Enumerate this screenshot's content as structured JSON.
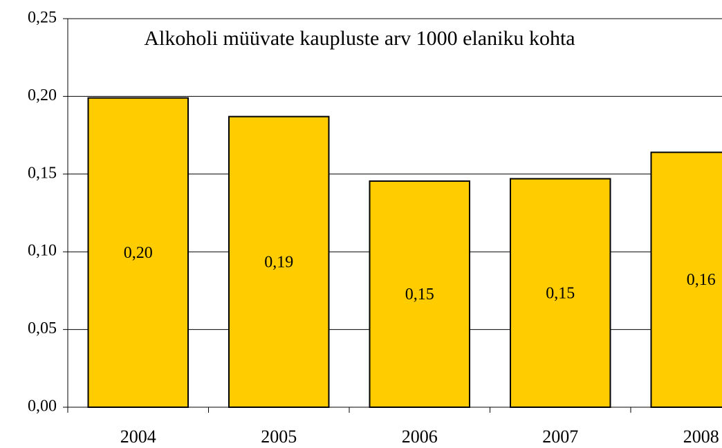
{
  "chart_data": {
    "type": "bar",
    "title": "Alkoholi müüvate kaupluste arv 1000 elaniku kohta",
    "categories": [
      "2004",
      "2005",
      "2006",
      "2007",
      "2008"
    ],
    "values": [
      0.199,
      0.187,
      0.1455,
      0.147,
      0.164
    ],
    "value_labels": [
      "0,20",
      "0,19",
      "0,15",
      "0,15",
      "0,16"
    ],
    "color": "#ffcc00",
    "ylim": [
      0,
      0.25
    ],
    "yticks": [
      {
        "value": 0,
        "label": "0,00"
      },
      {
        "value": 0.05,
        "label": "0,05"
      },
      {
        "value": 0.1,
        "label": "0,10"
      },
      {
        "value": 0.15,
        "label": "0,15"
      },
      {
        "value": 0.2,
        "label": "0,20"
      },
      {
        "value": 0.25,
        "label": "0,25"
      }
    ],
    "grid": true
  }
}
